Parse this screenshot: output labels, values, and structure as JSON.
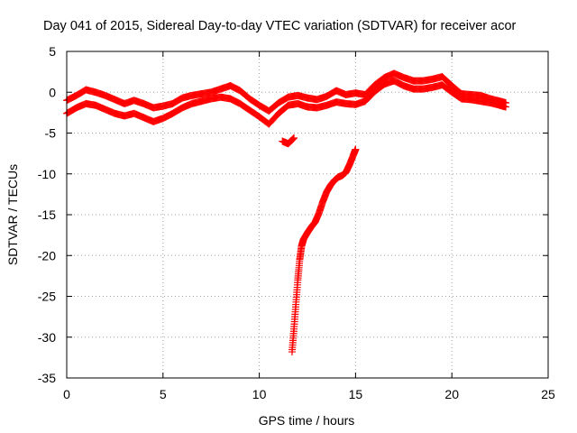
{
  "chart_data": {
    "type": "scatter",
    "title": "Day 041 of 2015, Sidereal Day-to-day VTEC variation (SDTVAR) for receiver acor",
    "xlabel": "GPS time / hours",
    "ylabel": "SDTVAR / TECUs",
    "xlim": [
      0,
      25
    ],
    "ylim": [
      -35,
      5
    ],
    "xticks": [
      0,
      5,
      10,
      15,
      20,
      25
    ],
    "yticks": [
      5,
      0,
      -5,
      -10,
      -15,
      -20,
      -25,
      -30,
      -35
    ],
    "grid": true,
    "legend": "none",
    "marker": "+",
    "colors": {
      "series": "#ff0000",
      "axis": "#000000",
      "grid": "#a0a0a0"
    },
    "series": [
      {
        "name": "band-upper",
        "x": [
          0,
          0.5,
          1,
          1.5,
          2,
          2.5,
          3,
          3.5,
          4,
          4.5,
          5,
          5.5,
          6,
          6.5,
          7,
          7.5,
          8,
          8.5,
          9,
          9.5,
          10,
          10.5,
          11,
          11.5,
          12,
          12.5,
          13,
          13.5,
          14,
          14.5,
          15,
          15.5,
          16,
          16.5,
          17,
          17.5,
          18,
          18.5,
          19,
          19.5,
          20,
          20.5,
          21,
          21.5,
          22,
          22.5,
          22.8
        ],
        "y": [
          -1.0,
          -0.4,
          0.3,
          0.0,
          -0.4,
          -0.9,
          -1.4,
          -1.0,
          -1.4,
          -1.9,
          -1.7,
          -1.4,
          -0.7,
          -0.4,
          -0.2,
          0.0,
          0.4,
          0.8,
          0.2,
          -0.8,
          -1.6,
          -2.3,
          -1.3,
          -0.6,
          -0.4,
          -0.7,
          -0.9,
          -0.5,
          0.2,
          -0.3,
          -0.1,
          -0.3,
          0.9,
          1.8,
          2.3,
          1.8,
          1.4,
          1.4,
          1.6,
          1.9,
          0.8,
          -0.2,
          -0.3,
          -0.4,
          -0.8,
          -1.1,
          -1.3
        ]
      },
      {
        "name": "band-lower",
        "x": [
          0,
          0.5,
          1,
          1.5,
          2,
          2.5,
          3,
          3.5,
          4,
          4.5,
          5,
          5.5,
          6,
          6.5,
          7,
          7.5,
          8,
          8.5,
          9,
          9.5,
          10,
          10.5,
          11,
          11.5,
          12,
          12.5,
          13,
          13.5,
          14,
          14.5,
          15,
          15.5,
          16,
          16.5,
          17,
          17.5,
          18,
          18.5,
          19,
          19.5,
          20,
          20.5,
          21,
          21.5,
          22,
          22.5,
          22.8
        ],
        "y": [
          -2.6,
          -1.9,
          -1.4,
          -1.6,
          -2.1,
          -2.6,
          -2.9,
          -2.6,
          -3.1,
          -3.6,
          -3.2,
          -2.6,
          -1.9,
          -1.4,
          -1.1,
          -0.8,
          -0.6,
          -0.8,
          -1.4,
          -2.2,
          -3.0,
          -3.9,
          -2.6,
          -1.6,
          -1.4,
          -1.8,
          -1.9,
          -1.6,
          -1.2,
          -1.4,
          -1.5,
          -1.1,
          0.1,
          1.0,
          1.4,
          0.8,
          0.4,
          0.4,
          0.6,
          0.9,
          0.0,
          -0.8,
          -0.9,
          -1.1,
          -1.3,
          -1.6,
          -1.8
        ]
      },
      {
        "name": "outlier-cluster",
        "x": [
          11.2,
          11.5,
          11.8
        ],
        "y": [
          -6.0,
          -6.3,
          -5.6
        ]
      },
      {
        "name": "descending-arc",
        "x": [
          11.7,
          11.8,
          11.9,
          12.0,
          12.1,
          12.2,
          12.3,
          12.5,
          12.7,
          12.9,
          13.1,
          13.3,
          13.5,
          13.7,
          13.9,
          14.1,
          14.3,
          14.5,
          14.7,
          14.9,
          15.0
        ],
        "y": [
          -31.8,
          -29.0,
          -26.0,
          -23.0,
          -20.5,
          -18.8,
          -18.0,
          -17.2,
          -16.5,
          -15.9,
          -14.8,
          -13.4,
          -12.2,
          -11.4,
          -10.8,
          -10.4,
          -10.2,
          -9.8,
          -8.8,
          -7.6,
          -7.0
        ]
      }
    ]
  }
}
